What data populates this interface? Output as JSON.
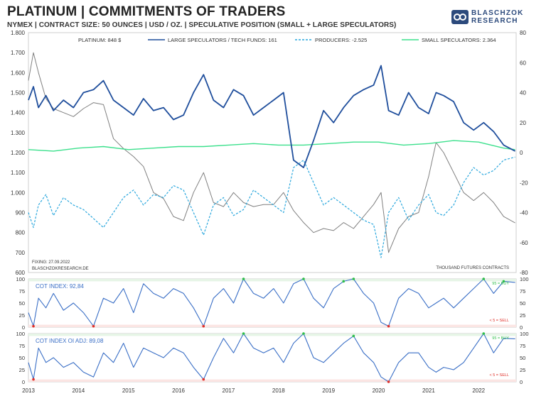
{
  "header": {
    "title": "PLATINUM | COMMITMENTS OF TRADERS",
    "subtitle": "NYMEX  |  CONTRACT SIZE: 50 OUNCES  |  USD / OZ.  |  SPECULATIVE  POSITION (SMALL + LARGE SPECULATORS)"
  },
  "logo": {
    "line1": "BLASCHZOK",
    "line2": "RESEARCH"
  },
  "colors": {
    "platinum": "#808080",
    "large": "#1f4e9c",
    "producers": "#2aa7dd",
    "small": "#3be08c",
    "index": "#3a6fc6",
    "buy": "#2fbf4a",
    "sell": "#e0302a"
  },
  "chart_data": [
    {
      "type": "line",
      "x_range": [
        2013,
        2022.75
      ],
      "y_left_ticks": [
        "1.800",
        "1.700",
        "1.600",
        "1.500",
        "1.400",
        "1.300",
        "1.200",
        "1.100",
        "1.000",
        "900",
        "800",
        "700",
        "600"
      ],
      "y_left_range": [
        600,
        1800
      ],
      "y_right_ticks": [
        "80",
        "60",
        "40",
        "20",
        "0",
        "-20",
        "-40",
        "-60",
        "-80"
      ],
      "y_right_range": [
        -80,
        80
      ],
      "x_tick_labels": [
        "2013",
        "2014",
        "2015",
        "2016",
        "2017",
        "2018",
        "2019",
        "2020",
        "2021",
        "2022"
      ],
      "legend": [
        "PLATINUM: 848 $",
        "LARGE SPECULATORS / TECH FUNDS: 161",
        "PRODUCERS: -2.525",
        "SMALL SPECULATORS: 2.364"
      ],
      "annotation_left": [
        "FIXING: 27.09.2022",
        "BLASCHZOKRESEARCH.DE"
      ],
      "annotation_right": "THOUSAND  FUTURES  CONTRACTS",
      "series": [
        {
          "name": "PLATINUM: 848 $",
          "axis": "left",
          "x": [
            2013.0,
            2013.1,
            2013.2,
            2013.35,
            2013.5,
            2013.7,
            2013.9,
            2014.1,
            2014.3,
            2014.5,
            2014.7,
            2014.9,
            2015.1,
            2015.3,
            2015.5,
            2015.7,
            2015.9,
            2016.1,
            2016.3,
            2016.5,
            2016.7,
            2016.9,
            2017.1,
            2017.3,
            2017.5,
            2017.7,
            2017.9,
            2018.1,
            2018.3,
            2018.5,
            2018.7,
            2018.9,
            2019.1,
            2019.3,
            2019.5,
            2019.7,
            2019.9,
            2020.05,
            2020.2,
            2020.4,
            2020.6,
            2020.8,
            2021.0,
            2021.15,
            2021.3,
            2021.5,
            2021.7,
            2021.9,
            2022.1,
            2022.3,
            2022.5,
            2022.73
          ],
          "values": [
            1560,
            1700,
            1600,
            1470,
            1420,
            1400,
            1380,
            1420,
            1450,
            1440,
            1270,
            1220,
            1180,
            1130,
            1000,
            970,
            880,
            860,
            1000,
            1100,
            950,
            930,
            1000,
            950,
            930,
            940,
            940,
            1000,
            910,
            850,
            800,
            820,
            810,
            850,
            820,
            880,
            940,
            1000,
            700,
            820,
            880,
            900,
            1080,
            1250,
            1200,
            1100,
            1000,
            960,
            1000,
            950,
            880,
            848
          ]
        },
        {
          "name": "LARGE SPECULATORS / TECH FUNDS: 161",
          "axis": "right",
          "x": [
            2013.0,
            2013.1,
            2013.2,
            2013.35,
            2013.5,
            2013.7,
            2013.9,
            2014.1,
            2014.3,
            2014.5,
            2014.7,
            2014.9,
            2015.1,
            2015.3,
            2015.5,
            2015.7,
            2015.9,
            2016.1,
            2016.3,
            2016.5,
            2016.7,
            2016.9,
            2017.1,
            2017.3,
            2017.5,
            2017.7,
            2017.9,
            2018.1,
            2018.3,
            2018.5,
            2018.7,
            2018.9,
            2019.1,
            2019.3,
            2019.5,
            2019.7,
            2019.9,
            2020.05,
            2020.2,
            2020.4,
            2020.6,
            2020.8,
            2021.0,
            2021.15,
            2021.3,
            2021.5,
            2021.7,
            2021.9,
            2022.1,
            2022.3,
            2022.5,
            2022.73
          ],
          "values": [
            35,
            44,
            30,
            38,
            28,
            35,
            30,
            40,
            42,
            48,
            35,
            30,
            25,
            36,
            28,
            30,
            22,
            25,
            40,
            52,
            35,
            30,
            42,
            38,
            25,
            30,
            35,
            40,
            -5,
            -10,
            8,
            28,
            20,
            30,
            38,
            42,
            45,
            58,
            28,
            25,
            40,
            30,
            26,
            40,
            38,
            34,
            20,
            15,
            20,
            14,
            5,
            1
          ]
        },
        {
          "name": "PRODUCERS: -2.525",
          "axis": "right",
          "x": [
            2013.0,
            2013.1,
            2013.2,
            2013.35,
            2013.5,
            2013.7,
            2013.9,
            2014.1,
            2014.3,
            2014.5,
            2014.7,
            2014.9,
            2015.1,
            2015.3,
            2015.5,
            2015.7,
            2015.9,
            2016.1,
            2016.3,
            2016.5,
            2016.7,
            2016.9,
            2017.1,
            2017.3,
            2017.5,
            2017.7,
            2017.9,
            2018.1,
            2018.3,
            2018.5,
            2018.7,
            2018.9,
            2019.1,
            2019.3,
            2019.5,
            2019.7,
            2019.9,
            2020.05,
            2020.2,
            2020.4,
            2020.6,
            2020.8,
            2021.0,
            2021.15,
            2021.3,
            2021.5,
            2021.7,
            2021.9,
            2022.1,
            2022.3,
            2022.5,
            2022.73
          ],
          "values": [
            -40,
            -50,
            -35,
            -28,
            -42,
            -30,
            -35,
            -38,
            -44,
            -50,
            -40,
            -30,
            -25,
            -35,
            -28,
            -30,
            -22,
            -25,
            -40,
            -55,
            -35,
            -30,
            -42,
            -38,
            -25,
            -30,
            -35,
            -40,
            -10,
            -5,
            -20,
            -35,
            -30,
            -35,
            -40,
            -45,
            -48,
            -70,
            -40,
            -30,
            -45,
            -35,
            -28,
            -40,
            -42,
            -35,
            -20,
            -10,
            -15,
            -12,
            -5,
            -3
          ]
        },
        {
          "name": "SMALL SPECULATORS: 2.364",
          "axis": "right",
          "x": [
            2013.0,
            2013.5,
            2014.0,
            2014.5,
            2015.0,
            2015.5,
            2016.0,
            2016.5,
            2017.0,
            2017.5,
            2018.0,
            2018.5,
            2019.0,
            2019.5,
            2020.0,
            2020.5,
            2021.0,
            2021.5,
            2022.0,
            2022.5,
            2022.73
          ],
          "values": [
            2,
            1,
            3,
            4,
            2,
            3,
            4,
            4,
            5,
            6,
            5,
            5,
            6,
            7,
            7,
            5,
            6,
            8,
            7,
            3,
            2
          ]
        }
      ]
    },
    {
      "type": "line",
      "title": "COT INDEX: 92,84",
      "y_ticks": [
        "100",
        "75",
        "50",
        "25",
        "0"
      ],
      "y_range": [
        0,
        100
      ],
      "buy_label": "95 = BUY",
      "sell_label": "< 5 = SELL",
      "series": [
        {
          "name": "COT INDEX: 92,84",
          "x": [
            2013.0,
            2013.1,
            2013.2,
            2013.35,
            2013.5,
            2013.7,
            2013.9,
            2014.1,
            2014.3,
            2014.5,
            2014.7,
            2014.9,
            2015.1,
            2015.3,
            2015.5,
            2015.7,
            2015.9,
            2016.1,
            2016.3,
            2016.5,
            2016.7,
            2016.9,
            2017.1,
            2017.3,
            2017.5,
            2017.7,
            2017.9,
            2018.1,
            2018.3,
            2018.5,
            2018.7,
            2018.9,
            2019.1,
            2019.3,
            2019.5,
            2019.7,
            2019.9,
            2020.05,
            2020.2,
            2020.4,
            2020.6,
            2020.8,
            2021.0,
            2021.15,
            2021.3,
            2021.5,
            2021.7,
            2021.9,
            2022.1,
            2022.3,
            2022.5,
            2022.73
          ],
          "values": [
            30,
            2,
            60,
            40,
            70,
            35,
            50,
            30,
            2,
            60,
            50,
            80,
            30,
            90,
            70,
            60,
            80,
            70,
            40,
            2,
            60,
            80,
            50,
            100,
            70,
            60,
            80,
            50,
            90,
            100,
            60,
            40,
            80,
            95,
            100,
            70,
            50,
            10,
            2,
            60,
            80,
            70,
            40,
            50,
            60,
            40,
            60,
            80,
            100,
            70,
            95,
            92.84
          ]
        }
      ]
    },
    {
      "type": "line",
      "title": "COT INDEX OI ADJ: 89,08",
      "y_ticks": [
        "100",
        "75",
        "50",
        "25",
        "0"
      ],
      "y_range": [
        0,
        100
      ],
      "buy_label": "95 = BUY",
      "sell_label": "< 5 = SELL",
      "series": [
        {
          "name": "COT INDEX OI ADJ: 89,08",
          "x": [
            2013.0,
            2013.1,
            2013.2,
            2013.35,
            2013.5,
            2013.7,
            2013.9,
            2014.1,
            2014.3,
            2014.5,
            2014.7,
            2014.9,
            2015.1,
            2015.3,
            2015.5,
            2015.7,
            2015.9,
            2016.1,
            2016.3,
            2016.5,
            2016.7,
            2016.9,
            2017.1,
            2017.3,
            2017.5,
            2017.7,
            2017.9,
            2018.1,
            2018.3,
            2018.5,
            2018.7,
            2018.9,
            2019.1,
            2019.3,
            2019.5,
            2019.7,
            2019.9,
            2020.05,
            2020.2,
            2020.4,
            2020.6,
            2020.8,
            2021.0,
            2021.15,
            2021.3,
            2021.5,
            2021.7,
            2021.9,
            2022.1,
            2022.3,
            2022.5,
            2022.73
          ],
          "values": [
            40,
            5,
            70,
            40,
            50,
            30,
            40,
            20,
            10,
            60,
            40,
            80,
            30,
            70,
            60,
            50,
            70,
            60,
            30,
            5,
            50,
            90,
            60,
            100,
            70,
            60,
            70,
            40,
            80,
            100,
            50,
            40,
            60,
            80,
            95,
            60,
            40,
            10,
            0,
            40,
            60,
            60,
            30,
            20,
            30,
            25,
            40,
            70,
            100,
            60,
            90,
            89.08
          ]
        }
      ]
    }
  ]
}
